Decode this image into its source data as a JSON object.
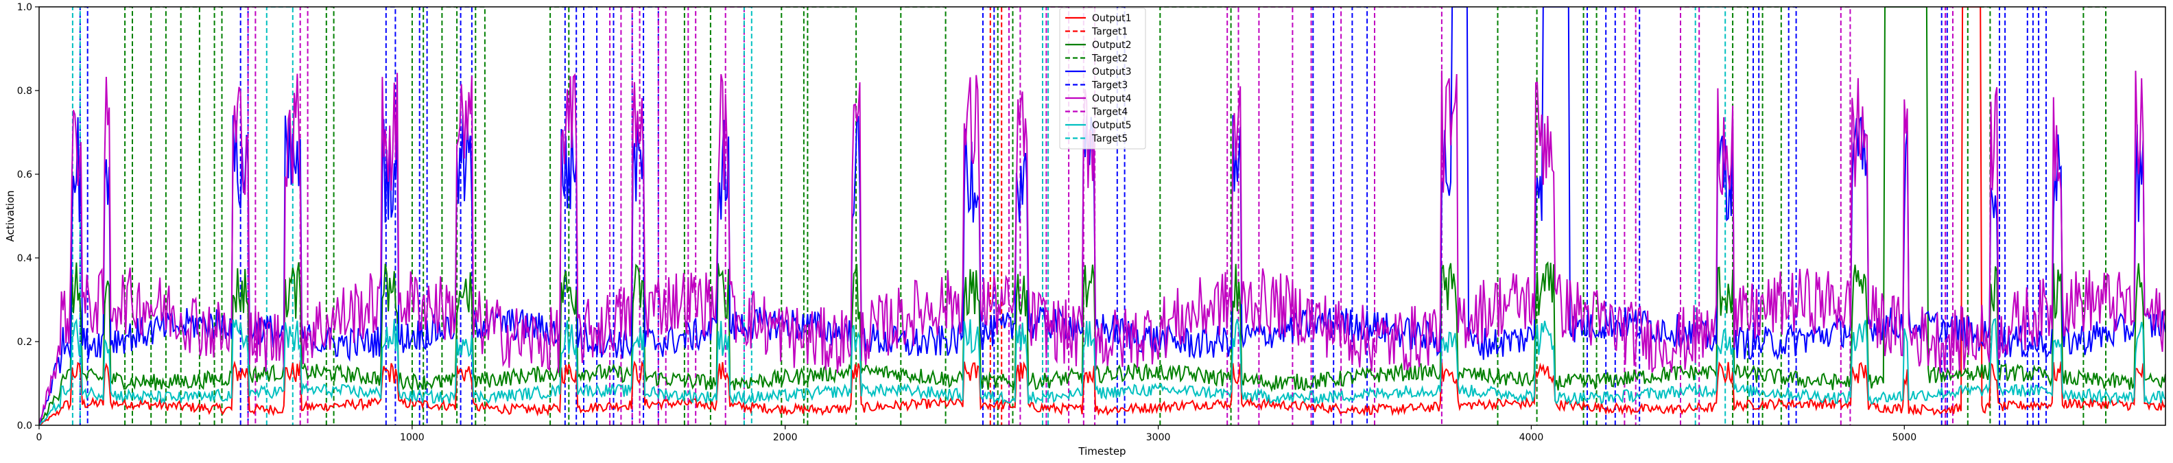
{
  "chart_data": {
    "type": "line",
    "title": "",
    "xlabel": "Timestep",
    "ylabel": "Activation",
    "xlim": [
      0,
      5700
    ],
    "ylim": [
      0,
      1.0
    ],
    "xticks": [
      0,
      1000,
      2000,
      3000,
      4000,
      5000
    ],
    "yticks": [
      0.0,
      0.2,
      0.4,
      0.6,
      0.8,
      1.0
    ],
    "ytick_labels": [
      "0.0",
      "0.2",
      "0.4",
      "0.6",
      "0.8",
      "1.0"
    ],
    "grid": false,
    "legend_position": "top-center",
    "series": [
      {
        "name": "Output1",
        "color": "#ff0000",
        "style": "solid",
        "baseline": 0.045,
        "noise": 0.012
      },
      {
        "name": "Target1",
        "color": "#ff0000",
        "style": "dashed",
        "segments": [
          [
            2550,
            2580
          ]
        ]
      },
      {
        "name": "Output2",
        "color": "#008000",
        "style": "solid",
        "baseline": 0.115,
        "noise": 0.02
      },
      {
        "name": "Target2",
        "color": "#008000",
        "style": "dashed",
        "segments": [
          [
            230,
            250
          ],
          [
            300,
            340
          ],
          [
            380,
            430
          ],
          [
            470,
            490
          ],
          [
            770,
            790
          ],
          [
            1000,
            1030
          ],
          [
            1080,
            1120
          ],
          [
            1170,
            1195
          ],
          [
            1370,
            1420
          ],
          [
            1730,
            1800
          ],
          [
            1990,
            2050
          ],
          [
            2060,
            2190
          ],
          [
            2310,
            2430
          ],
          [
            2570,
            2610
          ],
          [
            3005,
            3195
          ],
          [
            3910,
            4015
          ],
          [
            4140,
            4175
          ],
          [
            4540,
            4580
          ],
          [
            4620,
            4670
          ],
          [
            5170,
            5230
          ],
          [
            5480,
            5540
          ]
        ]
      },
      {
        "name": "Output3",
        "color": "#0000ff",
        "style": "solid",
        "baseline": 0.22,
        "noise": 0.04
      },
      {
        "name": "Target3",
        "color": "#0000ff",
        "style": "dashed",
        "segments": [
          [
            110,
            130
          ],
          [
            540,
            560
          ],
          [
            930,
            955
          ],
          [
            1020,
            1040
          ],
          [
            1130,
            1160
          ],
          [
            1410,
            1440
          ],
          [
            1460,
            1495
          ],
          [
            1540,
            1590
          ],
          [
            1620,
            1660
          ],
          [
            2530,
            2560
          ],
          [
            2890,
            2910
          ],
          [
            3415,
            3470
          ],
          [
            3520,
            3560
          ],
          [
            4150,
            4200
          ],
          [
            4225,
            4290
          ],
          [
            4595,
            4610
          ],
          [
            4690,
            4710
          ],
          [
            5100,
            5115
          ],
          [
            5255,
            5270
          ],
          [
            5330,
            5345
          ],
          [
            5360,
            5380
          ]
        ]
      },
      {
        "name": "Output4",
        "color": "#c000c0",
        "style": "solid",
        "baseline": 0.25,
        "noise": 0.08
      },
      {
        "name": "Target4",
        "color": "#c000c0",
        "style": "dashed",
        "segments": [
          [
            560,
            580
          ],
          [
            700,
            720
          ],
          [
            1530,
            1560
          ],
          [
            1590,
            1610
          ],
          [
            1660,
            1680
          ],
          [
            1740,
            1760
          ],
          [
            1840,
            1890
          ],
          [
            2600,
            2630
          ],
          [
            2700,
            2760
          ],
          [
            2800,
            2830
          ],
          [
            3185,
            3215
          ],
          [
            3270,
            3360
          ],
          [
            3410,
            3490
          ],
          [
            3580,
            3760
          ],
          [
            4250,
            4280
          ],
          [
            4400,
            4450
          ],
          [
            4830,
            4855
          ],
          [
            5110,
            5130
          ]
        ]
      },
      {
        "name": "Output5",
        "color": "#00c0c0",
        "style": "solid",
        "baseline": 0.075,
        "noise": 0.015
      },
      {
        "name": "Target5",
        "color": "#00c0c0",
        "style": "dashed",
        "segments": [
          [
            90,
            110
          ],
          [
            610,
            680
          ],
          [
            1890,
            1910
          ],
          [
            2690,
            2705
          ],
          [
            4440,
            4520
          ]
        ]
      }
    ],
    "pulses": [
      [
        85,
        115
      ],
      [
        175,
        190
      ],
      [
        520,
        560
      ],
      [
        660,
        700
      ],
      [
        920,
        960
      ],
      [
        1120,
        1160
      ],
      [
        1400,
        1440
      ],
      [
        1590,
        1620
      ],
      [
        1820,
        1850
      ],
      [
        2180,
        2200
      ],
      [
        2480,
        2520
      ],
      [
        2620,
        2650
      ],
      [
        2800,
        2830
      ],
      [
        3200,
        3220
      ],
      [
        3760,
        3800
      ],
      [
        4010,
        4060
      ],
      [
        4500,
        4540
      ],
      [
        4860,
        4900
      ],
      [
        5000,
        5010
      ],
      [
        5230,
        5250
      ],
      [
        5400,
        5420
      ],
      [
        5620,
        5640
      ]
    ],
    "solid_blocks": [
      {
        "series": "Output3",
        "range": [
          3785,
          3830
        ]
      },
      {
        "series": "Output3",
        "range": [
          4030,
          4100
        ]
      },
      {
        "series": "Output2",
        "range": [
          4945,
          5060
        ]
      },
      {
        "series": "Output1",
        "range": [
          5155,
          5205
        ]
      }
    ]
  }
}
